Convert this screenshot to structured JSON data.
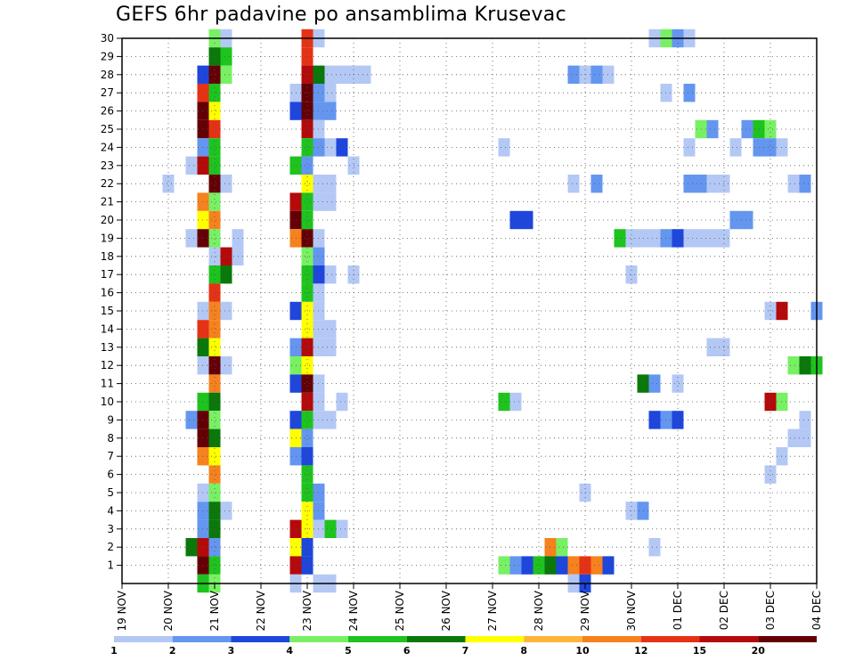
{
  "chart_data": {
    "type": "heatmap",
    "title": "GEFS 6hr padavine po ansamblima Krusevac",
    "ylim": [
      0,
      30
    ],
    "y_ticks": [
      "1",
      "2",
      "3",
      "4",
      "5",
      "6",
      "7",
      "8",
      "9",
      "10",
      "11",
      "12",
      "13",
      "14",
      "15",
      "16",
      "17",
      "18",
      "19",
      "20",
      "21",
      "22",
      "23",
      "24",
      "25",
      "26",
      "27",
      "28",
      "29",
      "30"
    ],
    "x_range": [
      0,
      60
    ],
    "x_tick_labels": [
      "19 NOV",
      "20 NOV",
      "21 NOV",
      "22 NOV",
      "23 NOV",
      "24 NOV",
      "25 NOV",
      "26 NOV",
      "27 NOV",
      "28 NOV",
      "29 NOV",
      "30 NOV",
      "01 DEC",
      "02 DEC",
      "03 DEC",
      "04 DEC"
    ],
    "grid": true,
    "colorbar": {
      "labels": [
        "1",
        "2",
        "3",
        "4",
        "5",
        "6",
        "7",
        "8",
        "10",
        "12",
        "15",
        "20"
      ],
      "colors": [
        "#b4c8f5",
        "#6496f0",
        "#1e46dc",
        "#78f064",
        "#1ec31e",
        "#0a780a",
        "#ffff00",
        "#ffb43c",
        "#f5821e",
        "#e63214",
        "#b40a0a",
        "#640005"
      ]
    },
    "cells": [
      [
        30,
        8,
        4
      ],
      [
        30,
        9,
        1
      ],
      [
        30,
        16,
        10
      ],
      [
        30,
        17,
        1
      ],
      [
        30,
        46,
        1
      ],
      [
        30,
        47,
        4
      ],
      [
        30,
        48,
        2
      ],
      [
        30,
        49,
        1
      ],
      [
        29,
        8,
        6
      ],
      [
        29,
        9,
        5
      ],
      [
        29,
        16,
        10
      ],
      [
        28,
        7,
        3
      ],
      [
        28,
        8,
        12
      ],
      [
        28,
        9,
        4
      ],
      [
        28,
        16,
        11
      ],
      [
        28,
        17,
        6
      ],
      [
        28,
        18,
        1
      ],
      [
        28,
        19,
        1
      ],
      [
        28,
        20,
        1
      ],
      [
        28,
        21,
        1
      ],
      [
        28,
        39,
        2
      ],
      [
        28,
        40,
        1
      ],
      [
        28,
        41,
        2
      ],
      [
        28,
        42,
        1
      ],
      [
        27,
        7,
        10
      ],
      [
        27,
        8,
        5
      ],
      [
        27,
        15,
        1
      ],
      [
        27,
        16,
        12
      ],
      [
        27,
        17,
        2
      ],
      [
        27,
        18,
        1
      ],
      [
        27,
        47,
        1
      ],
      [
        27,
        49,
        2
      ],
      [
        26,
        7,
        12
      ],
      [
        26,
        8,
        7
      ],
      [
        26,
        15,
        3
      ],
      [
        26,
        16,
        12
      ],
      [
        26,
        17,
        2
      ],
      [
        26,
        18,
        2
      ],
      [
        25,
        7,
        12
      ],
      [
        25,
        8,
        10
      ],
      [
        25,
        16,
        11
      ],
      [
        25,
        17,
        1
      ],
      [
        25,
        50,
        4
      ],
      [
        25,
        51,
        2
      ],
      [
        25,
        54,
        2
      ],
      [
        25,
        55,
        5
      ],
      [
        25,
        56,
        4
      ],
      [
        24,
        7,
        2
      ],
      [
        24,
        8,
        5
      ],
      [
        24,
        16,
        5
      ],
      [
        24,
        17,
        2
      ],
      [
        24,
        18,
        1
      ],
      [
        24,
        19,
        3
      ],
      [
        24,
        33,
        1
      ],
      [
        24,
        49,
        1
      ],
      [
        24,
        53,
        1
      ],
      [
        24,
        55,
        2
      ],
      [
        24,
        56,
        2
      ],
      [
        24,
        57,
        1
      ],
      [
        23,
        6,
        1
      ],
      [
        23,
        7,
        11
      ],
      [
        23,
        8,
        5
      ],
      [
        23,
        15,
        5
      ],
      [
        23,
        16,
        2
      ],
      [
        23,
        20,
        1
      ],
      [
        22,
        4,
        1
      ],
      [
        22,
        8,
        12
      ],
      [
        22,
        9,
        1
      ],
      [
        22,
        16,
        7
      ],
      [
        22,
        17,
        1
      ],
      [
        22,
        18,
        1
      ],
      [
        22,
        39,
        1
      ],
      [
        22,
        41,
        2
      ],
      [
        22,
        49,
        2
      ],
      [
        22,
        50,
        2
      ],
      [
        22,
        51,
        1
      ],
      [
        22,
        52,
        1
      ],
      [
        22,
        58,
        1
      ],
      [
        22,
        59,
        2
      ],
      [
        21,
        7,
        9
      ],
      [
        21,
        8,
        4
      ],
      [
        21,
        15,
        11
      ],
      [
        21,
        16,
        5
      ],
      [
        21,
        17,
        1
      ],
      [
        21,
        18,
        1
      ],
      [
        20,
        7,
        7
      ],
      [
        20,
        8,
        9
      ],
      [
        20,
        15,
        12
      ],
      [
        20,
        16,
        5
      ],
      [
        20,
        34,
        3
      ],
      [
        20,
        35,
        3
      ],
      [
        20,
        53,
        2
      ],
      [
        20,
        54,
        2
      ],
      [
        19,
        6,
        1
      ],
      [
        19,
        7,
        12
      ],
      [
        19,
        8,
        4
      ],
      [
        19,
        10,
        1
      ],
      [
        19,
        15,
        9
      ],
      [
        19,
        16,
        12
      ],
      [
        19,
        17,
        1
      ],
      [
        19,
        43,
        5
      ],
      [
        19,
        44,
        1
      ],
      [
        19,
        45,
        1
      ],
      [
        19,
        46,
        1
      ],
      [
        19,
        47,
        2
      ],
      [
        19,
        48,
        3
      ],
      [
        19,
        49,
        1
      ],
      [
        19,
        50,
        1
      ],
      [
        19,
        51,
        1
      ],
      [
        19,
        52,
        1
      ],
      [
        18,
        8,
        1
      ],
      [
        18,
        9,
        11
      ],
      [
        18,
        10,
        1
      ],
      [
        18,
        16,
        4
      ],
      [
        18,
        17,
        2
      ],
      [
        17,
        8,
        5
      ],
      [
        17,
        9,
        6
      ],
      [
        17,
        16,
        5
      ],
      [
        17,
        17,
        3
      ],
      [
        17,
        18,
        1
      ],
      [
        17,
        20,
        1
      ],
      [
        17,
        44,
        1
      ],
      [
        16,
        8,
        10
      ],
      [
        16,
        16,
        5
      ],
      [
        16,
        17,
        1
      ],
      [
        15,
        7,
        1
      ],
      [
        15,
        8,
        9
      ],
      [
        15,
        9,
        1
      ],
      [
        15,
        15,
        3
      ],
      [
        15,
        16,
        7
      ],
      [
        15,
        17,
        1
      ],
      [
        15,
        56,
        1
      ],
      [
        15,
        57,
        11
      ],
      [
        15,
        60,
        2
      ],
      [
        14,
        7,
        10
      ],
      [
        14,
        8,
        9
      ],
      [
        14,
        16,
        7
      ],
      [
        14,
        17,
        1
      ],
      [
        14,
        18,
        1
      ],
      [
        13,
        7,
        6
      ],
      [
        13,
        8,
        7
      ],
      [
        13,
        15,
        2
      ],
      [
        13,
        16,
        11
      ],
      [
        13,
        17,
        1
      ],
      [
        13,
        18,
        1
      ],
      [
        13,
        51,
        1
      ],
      [
        13,
        52,
        1
      ],
      [
        12,
        7,
        1
      ],
      [
        12,
        8,
        12
      ],
      [
        12,
        9,
        1
      ],
      [
        12,
        15,
        4
      ],
      [
        12,
        16,
        7
      ],
      [
        12,
        58,
        4
      ],
      [
        12,
        59,
        6
      ],
      [
        12,
        60,
        5
      ],
      [
        11,
        8,
        9
      ],
      [
        11,
        15,
        3
      ],
      [
        11,
        16,
        12
      ],
      [
        11,
        17,
        1
      ],
      [
        11,
        45,
        6
      ],
      [
        11,
        46,
        2
      ],
      [
        11,
        48,
        1
      ],
      [
        10,
        7,
        5
      ],
      [
        10,
        8,
        6
      ],
      [
        10,
        16,
        11
      ],
      [
        10,
        17,
        1
      ],
      [
        10,
        19,
        1
      ],
      [
        10,
        33,
        5
      ],
      [
        10,
        34,
        1
      ],
      [
        10,
        56,
        11
      ],
      [
        10,
        57,
        4
      ],
      [
        9,
        6,
        2
      ],
      [
        9,
        7,
        12
      ],
      [
        9,
        8,
        4
      ],
      [
        9,
        15,
        3
      ],
      [
        9,
        16,
        5
      ],
      [
        9,
        17,
        1
      ],
      [
        9,
        18,
        1
      ],
      [
        9,
        46,
        3
      ],
      [
        9,
        47,
        2
      ],
      [
        9,
        48,
        3
      ],
      [
        9,
        59,
        1
      ],
      [
        8,
        7,
        12
      ],
      [
        8,
        8,
        6
      ],
      [
        8,
        15,
        7
      ],
      [
        8,
        16,
        2
      ],
      [
        8,
        58,
        1
      ],
      [
        8,
        59,
        1
      ],
      [
        7,
        7,
        9
      ],
      [
        7,
        8,
        7
      ],
      [
        7,
        15,
        2
      ],
      [
        7,
        16,
        3
      ],
      [
        7,
        57,
        1
      ],
      [
        6,
        8,
        9
      ],
      [
        6,
        16,
        5
      ],
      [
        6,
        56,
        1
      ],
      [
        5,
        7,
        1
      ],
      [
        5,
        8,
        4
      ],
      [
        5,
        16,
        5
      ],
      [
        5,
        17,
        2
      ],
      [
        5,
        40,
        1
      ],
      [
        4,
        7,
        2
      ],
      [
        4,
        8,
        6
      ],
      [
        4,
        9,
        1
      ],
      [
        4,
        16,
        7
      ],
      [
        4,
        17,
        2
      ],
      [
        4,
        44,
        1
      ],
      [
        4,
        45,
        2
      ],
      [
        3,
        7,
        2
      ],
      [
        3,
        8,
        6
      ],
      [
        3,
        15,
        11
      ],
      [
        3,
        16,
        7
      ],
      [
        3,
        17,
        1
      ],
      [
        3,
        18,
        5
      ],
      [
        3,
        19,
        1
      ],
      [
        2,
        6,
        6
      ],
      [
        2,
        7,
        11
      ],
      [
        2,
        8,
        2
      ],
      [
        2,
        15,
        7
      ],
      [
        2,
        16,
        3
      ],
      [
        2,
        37,
        9
      ],
      [
        2,
        38,
        4
      ],
      [
        2,
        46,
        1
      ],
      [
        1,
        7,
        12
      ],
      [
        1,
        8,
        5
      ],
      [
        1,
        15,
        11
      ],
      [
        1,
        16,
        3
      ],
      [
        1,
        33,
        4
      ],
      [
        1,
        34,
        2
      ],
      [
        1,
        35,
        3
      ],
      [
        1,
        36,
        5
      ],
      [
        1,
        37,
        6
      ],
      [
        1,
        38,
        3
      ],
      [
        1,
        39,
        9
      ],
      [
        1,
        40,
        10
      ],
      [
        1,
        41,
        9
      ],
      [
        1,
        42,
        3
      ],
      [
        0,
        7,
        5
      ],
      [
        0,
        8,
        4
      ],
      [
        0,
        15,
        1
      ],
      [
        0,
        17,
        1
      ],
      [
        0,
        18,
        1
      ],
      [
        0,
        39,
        1
      ],
      [
        0,
        40,
        3
      ]
    ]
  }
}
